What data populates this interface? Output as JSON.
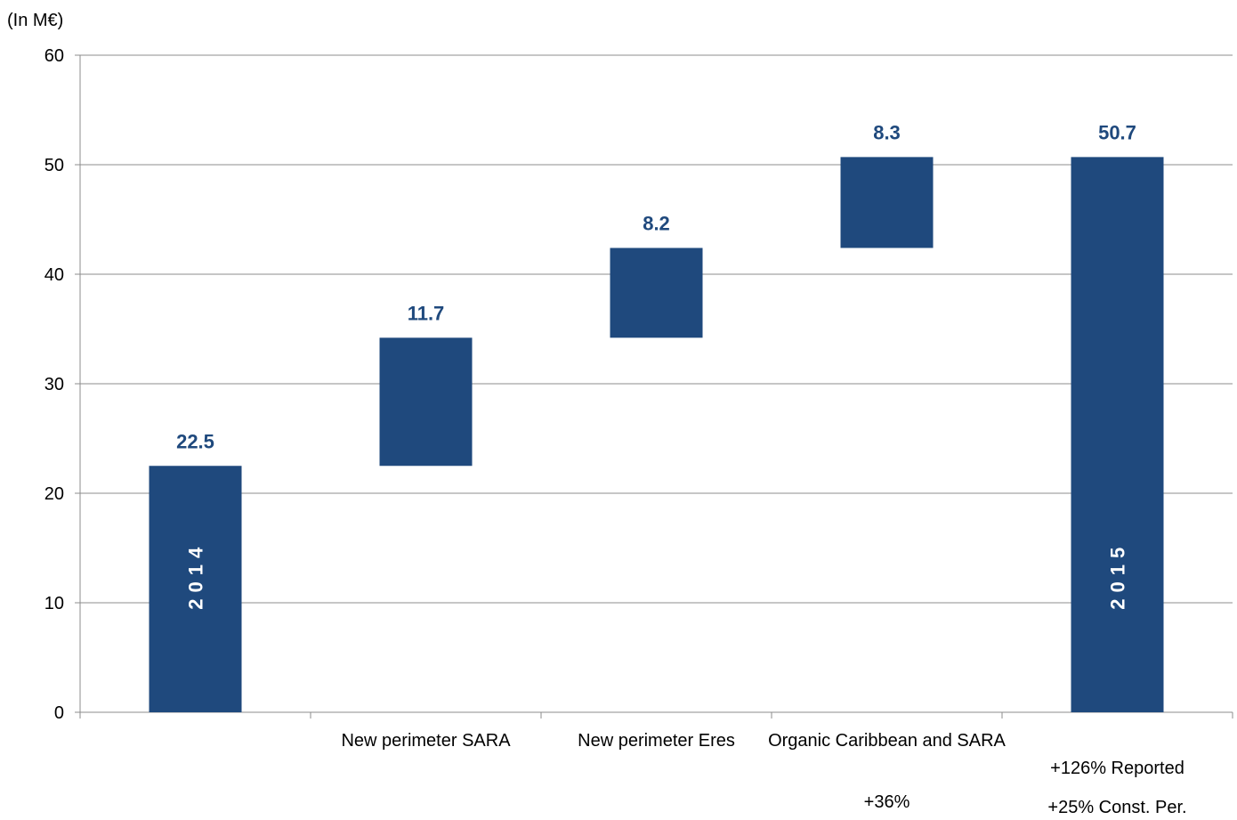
{
  "unit_label": "(In M€)",
  "chart_data": {
    "type": "bar",
    "subtype": "waterfall",
    "ylim": [
      0,
      60
    ],
    "yticks": [
      0,
      10,
      20,
      30,
      40,
      50,
      60
    ],
    "grid": true,
    "bar_color": "#1F497D",
    "value_label_color": "#1F497D",
    "categories": [
      {
        "label": "",
        "inner_label": "2014",
        "start": 0,
        "end": 22.5,
        "value_label": "22.5"
      },
      {
        "label": "New perimeter SARA",
        "start": 22.5,
        "end": 34.2,
        "value_label": "11.7"
      },
      {
        "label": "New perimeter Eres",
        "start": 34.2,
        "end": 42.4,
        "value_label": "8.2"
      },
      {
        "label": "Organic Caribbean and SARA",
        "start": 42.4,
        "end": 50.7,
        "value_label": "8.3"
      },
      {
        "label": "",
        "inner_label": "2015",
        "start": 0,
        "end": 50.7,
        "value_label": "50.7"
      }
    ],
    "notes": {
      "organic": "+36%",
      "reported": "+126% Reported",
      "const_per": "+25% Const. Per."
    }
  }
}
